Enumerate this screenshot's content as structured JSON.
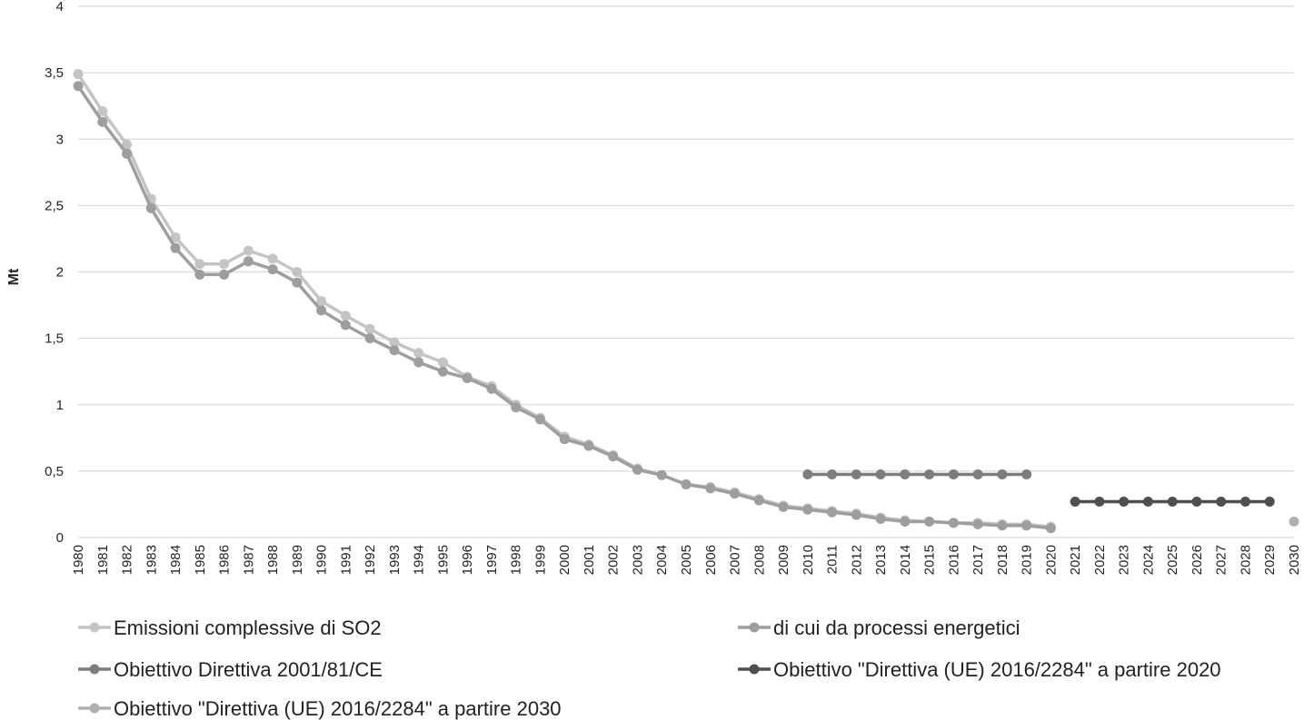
{
  "chart_data": {
    "type": "line",
    "title": "",
    "xlabel": "",
    "ylabel": "Mt",
    "ylim": [
      0,
      4
    ],
    "yticks": [
      "0",
      "0,5",
      "1",
      "1,5",
      "2",
      "2,5",
      "3",
      "3,5",
      "4"
    ],
    "grid": true,
    "legend_position": "bottom",
    "categories": [
      "1980",
      "1981",
      "1982",
      "1983",
      "1984",
      "1985",
      "1986",
      "1987",
      "1988",
      "1989",
      "1990",
      "1991",
      "1992",
      "1993",
      "1994",
      "1995",
      "1996",
      "1997",
      "1998",
      "1999",
      "2000",
      "2001",
      "2002",
      "2003",
      "2004",
      "2005",
      "2006",
      "2007",
      "2008",
      "2009",
      "2010",
      "2011",
      "2012",
      "2013",
      "2014",
      "2015",
      "2016",
      "2017",
      "2018",
      "2019",
      "2020",
      "2021",
      "2022",
      "2023",
      "2024",
      "2025",
      "2026",
      "2027",
      "2028",
      "2029",
      "2030"
    ],
    "series": [
      {
        "name": "Emissioni complessive di SO2",
        "color": "#c4c4c4",
        "values": [
          3.49,
          3.21,
          2.96,
          2.55,
          2.26,
          2.06,
          2.06,
          2.16,
          2.1,
          2.0,
          1.78,
          1.67,
          1.57,
          1.47,
          1.39,
          1.32,
          1.21,
          1.14,
          1.0,
          0.9,
          0.76,
          0.7,
          0.62,
          0.52,
          0.47,
          0.4,
          0.38,
          0.34,
          0.29,
          0.24,
          0.22,
          0.2,
          0.18,
          0.15,
          0.13,
          0.12,
          0.11,
          0.11,
          0.1,
          0.1,
          0.08,
          null,
          null,
          null,
          null,
          null,
          null,
          null,
          null,
          null,
          null
        ]
      },
      {
        "name": "di cui da processi energetici",
        "color": "#9e9e9e",
        "values": [
          3.4,
          3.13,
          2.89,
          2.48,
          2.18,
          1.98,
          1.98,
          2.08,
          2.02,
          1.92,
          1.71,
          1.6,
          1.5,
          1.41,
          1.32,
          1.25,
          1.2,
          1.12,
          0.98,
          0.89,
          0.74,
          0.69,
          0.61,
          0.51,
          0.47,
          0.4,
          0.37,
          0.33,
          0.28,
          0.23,
          0.21,
          0.19,
          0.17,
          0.14,
          0.12,
          0.12,
          0.11,
          0.1,
          0.09,
          0.09,
          0.07,
          null,
          null,
          null,
          null,
          null,
          null,
          null,
          null,
          null,
          null
        ]
      },
      {
        "name": "Obiettivo Direttiva 2001/81/CE",
        "color": "#7d7d7d",
        "values": [
          null,
          null,
          null,
          null,
          null,
          null,
          null,
          null,
          null,
          null,
          null,
          null,
          null,
          null,
          null,
          null,
          null,
          null,
          null,
          null,
          null,
          null,
          null,
          null,
          null,
          null,
          null,
          null,
          null,
          null,
          0.475,
          0.475,
          0.475,
          0.475,
          0.475,
          0.475,
          0.475,
          0.475,
          0.475,
          0.475,
          null,
          null,
          null,
          null,
          null,
          null,
          null,
          null,
          null,
          null,
          null
        ]
      },
      {
        "name": "Obiettivo \"Direttiva (UE) 2016/2284\" a partire 2020",
        "color": "#4f4f4f",
        "values": [
          null,
          null,
          null,
          null,
          null,
          null,
          null,
          null,
          null,
          null,
          null,
          null,
          null,
          null,
          null,
          null,
          null,
          null,
          null,
          null,
          null,
          null,
          null,
          null,
          null,
          null,
          null,
          null,
          null,
          null,
          null,
          null,
          null,
          null,
          null,
          null,
          null,
          null,
          null,
          null,
          null,
          0.27,
          0.27,
          0.27,
          0.27,
          0.27,
          0.27,
          0.27,
          0.27,
          0.27,
          null
        ]
      },
      {
        "name": "Obiettivo \"Direttiva (UE) 2016/2284\" a partire 2030",
        "color": "#b0b0b0",
        "values": [
          null,
          null,
          null,
          null,
          null,
          null,
          null,
          null,
          null,
          null,
          null,
          null,
          null,
          null,
          null,
          null,
          null,
          null,
          null,
          null,
          null,
          null,
          null,
          null,
          null,
          null,
          null,
          null,
          null,
          null,
          null,
          null,
          null,
          null,
          null,
          null,
          null,
          null,
          null,
          null,
          null,
          null,
          null,
          null,
          null,
          null,
          null,
          null,
          null,
          null,
          0.12
        ]
      }
    ]
  }
}
